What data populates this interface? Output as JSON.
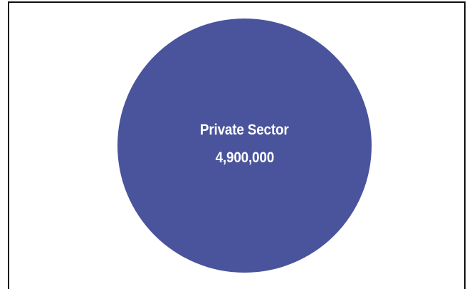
{
  "diagram": {
    "circle_color": "#4a549c",
    "sector_label": "Private Sector",
    "sector_value": "4,900,000"
  }
}
